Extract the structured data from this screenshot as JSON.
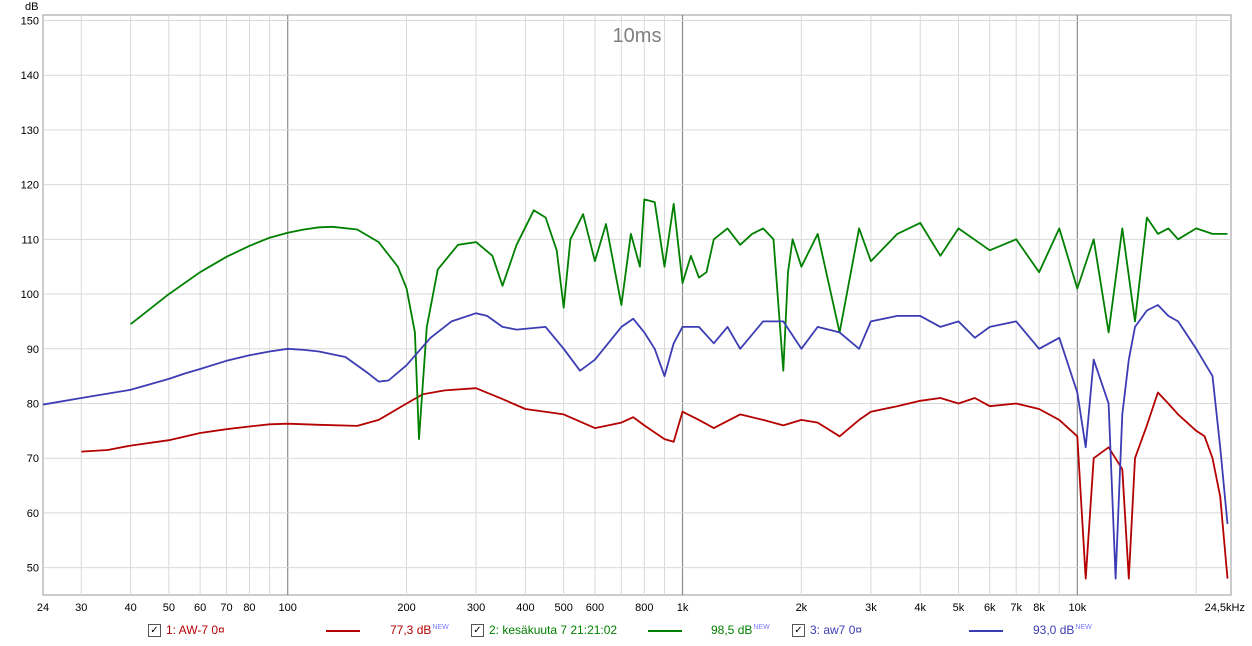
{
  "chart_data": {
    "type": "line",
    "title": "10ms",
    "ylabel": "dB",
    "xlabel": "",
    "x_scale": "log",
    "xlim": [
      24,
      24500
    ],
    "ylim": [
      45,
      151
    ],
    "grid": true,
    "x_ticks": [
      {
        "v": 24,
        "label": "24"
      },
      {
        "v": 30,
        "label": "30"
      },
      {
        "v": 40,
        "label": "40"
      },
      {
        "v": 50,
        "label": "50"
      },
      {
        "v": 60,
        "label": "60"
      },
      {
        "v": 70,
        "label": "70"
      },
      {
        "v": 80,
        "label": "80"
      },
      {
        "v": 100,
        "label": "100"
      },
      {
        "v": 200,
        "label": "200"
      },
      {
        "v": 300,
        "label": "300"
      },
      {
        "v": 400,
        "label": "400"
      },
      {
        "v": 500,
        "label": "500"
      },
      {
        "v": 600,
        "label": "600"
      },
      {
        "v": 800,
        "label": "800"
      },
      {
        "v": 1000,
        "label": "1k"
      },
      {
        "v": 2000,
        "label": "2k"
      },
      {
        "v": 3000,
        "label": "3k"
      },
      {
        "v": 4000,
        "label": "4k"
      },
      {
        "v": 5000,
        "label": "5k"
      },
      {
        "v": 6000,
        "label": "6k"
      },
      {
        "v": 7000,
        "label": "7k"
      },
      {
        "v": 8000,
        "label": "8k"
      },
      {
        "v": 10000,
        "label": "10k"
      },
      {
        "v": 24500,
        "label": "24,5kHz"
      }
    ],
    "y_ticks": [
      50,
      60,
      70,
      80,
      90,
      100,
      110,
      120,
      130,
      140,
      150
    ],
    "series": [
      {
        "name": "1: AW-7 0¤",
        "color": "#b40000",
        "level": "77,3 dB",
        "x": [
          30,
          35,
          40,
          50,
          60,
          70,
          80,
          90,
          100,
          120,
          150,
          170,
          200,
          220,
          250,
          300,
          350,
          400,
          500,
          600,
          700,
          750,
          800,
          900,
          950,
          1000,
          1100,
          1200,
          1400,
          1600,
          1800,
          2000,
          2200,
          2500,
          2800,
          3000,
          3500,
          4000,
          4500,
          5000,
          5500,
          6000,
          7000,
          8000,
          9000,
          10000,
          10500,
          11000,
          12000,
          13000,
          13500,
          14000,
          15000,
          16000,
          17000,
          18000,
          20000,
          21000,
          22000,
          23000,
          24000
        ],
        "y": [
          71.2,
          71.5,
          72.3,
          73.3,
          74.6,
          75.3,
          75.8,
          76.2,
          76.3,
          76.1,
          75.9,
          77.0,
          80.0,
          81.7,
          82.4,
          82.8,
          80.8,
          79.0,
          78.0,
          75.5,
          76.5,
          77.5,
          76.0,
          73.5,
          73.0,
          78.5,
          77.0,
          75.5,
          78.0,
          77.0,
          76.0,
          77.0,
          76.5,
          74.0,
          77.0,
          78.5,
          79.5,
          80.5,
          81.0,
          80.0,
          81.0,
          79.5,
          80.0,
          79.0,
          77.0,
          74.0,
          48.0,
          70.0,
          72.0,
          68.0,
          48.0,
          70.0,
          76.0,
          82.0,
          80.0,
          78.0,
          75.0,
          74.0,
          70.0,
          63.0,
          48.0
        ]
      },
      {
        "name": "2: kesäkuuta 7 21:21:02",
        "color": "#008000",
        "level": "98,5 dB",
        "x": [
          40,
          50,
          60,
          70,
          80,
          90,
          100,
          110,
          120,
          130,
          150,
          170,
          190,
          200,
          210,
          215,
          225,
          240,
          270,
          300,
          330,
          350,
          380,
          420,
          450,
          480,
          500,
          520,
          560,
          600,
          640,
          700,
          740,
          780,
          800,
          850,
          900,
          950,
          1000,
          1050,
          1100,
          1150,
          1200,
          1300,
          1400,
          1500,
          1600,
          1700,
          1800,
          1850,
          1900,
          2000,
          2200,
          2500,
          2800,
          3000,
          3500,
          4000,
          4500,
          5000,
          6000,
          7000,
          8000,
          9000,
          10000,
          11000,
          12000,
          13000,
          14000,
          15000,
          16000,
          17000,
          18000,
          20000,
          22000,
          24000
        ],
        "y": [
          94.5,
          100.0,
          104.0,
          106.8,
          108.8,
          110.3,
          111.2,
          111.8,
          112.2,
          112.3,
          111.8,
          109.5,
          105.0,
          101.0,
          93.0,
          73.5,
          94.0,
          104.5,
          109.0,
          109.5,
          107.0,
          101.5,
          109.0,
          115.3,
          114.0,
          108.0,
          97.5,
          110.0,
          114.6,
          106.0,
          112.8,
          98.0,
          111.0,
          105.0,
          117.3,
          116.8,
          105.0,
          116.5,
          102.0,
          107.0,
          103.0,
          104.0,
          110.0,
          112.0,
          109.0,
          111.0,
          112.0,
          110.0,
          86.0,
          104.0,
          110.0,
          105.0,
          111.0,
          93.0,
          112.0,
          106.0,
          111.0,
          113.0,
          107.0,
          112.0,
          108.0,
          110.0,
          104.0,
          112.0,
          101.0,
          110.0,
          93.0,
          112.0,
          95.0,
          114.0,
          111.0,
          112.0,
          110.0,
          112.0,
          111.0,
          111.0
        ]
      },
      {
        "name": "3: aw7 0¤",
        "color": "#3c3cb4",
        "level": "93,0 dB",
        "x": [
          24,
          30,
          40,
          50,
          55,
          60,
          70,
          80,
          90,
          100,
          110,
          120,
          140,
          160,
          170,
          180,
          200,
          230,
          260,
          300,
          320,
          350,
          380,
          450,
          500,
          550,
          600,
          700,
          750,
          800,
          850,
          900,
          950,
          1000,
          1100,
          1200,
          1300,
          1400,
          1600,
          1800,
          2000,
          2200,
          2500,
          2800,
          3000,
          3500,
          4000,
          4500,
          5000,
          5500,
          6000,
          7000,
          8000,
          9000,
          10000,
          10500,
          11000,
          12000,
          12500,
          13000,
          13500,
          14000,
          15000,
          16000,
          17000,
          18000,
          20000,
          22000,
          23000,
          24000
        ],
        "y": [
          79.8,
          81.0,
          82.5,
          84.5,
          85.5,
          86.3,
          87.8,
          88.8,
          89.5,
          90.0,
          89.8,
          89.5,
          88.5,
          85.5,
          84.0,
          84.2,
          87.0,
          92.0,
          95.0,
          96.5,
          96.0,
          94.0,
          93.5,
          94.0,
          90.0,
          86.0,
          88.0,
          94.0,
          95.5,
          93.0,
          90.0,
          85.0,
          91.0,
          94.0,
          94.0,
          91.0,
          94.0,
          90.0,
          95.0,
          95.0,
          90.0,
          94.0,
          93.0,
          90.0,
          95.0,
          96.0,
          96.0,
          94.0,
          95.0,
          92.0,
          94.0,
          95.0,
          90.0,
          92.0,
          82.0,
          72.0,
          88.0,
          80.0,
          48.0,
          78.0,
          88.0,
          94.0,
          97.0,
          98.0,
          96.0,
          95.0,
          90.0,
          85.0,
          72.0,
          58.0
        ]
      }
    ]
  },
  "legend": {
    "checkbox_mark": "✓",
    "new_badge": "NEW"
  }
}
